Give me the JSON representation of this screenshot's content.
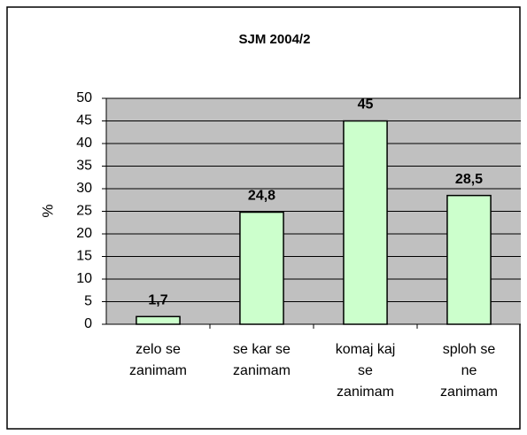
{
  "chart_data": {
    "type": "bar",
    "title": "SJM 2004/2",
    "y_label": "%",
    "categories": [
      "zelo se zanimam",
      "se kar se zanimam",
      "komaj kaj se zanimam",
      "sploh se ne zanimam"
    ],
    "values": [
      1.7,
      24.8,
      45,
      28.5
    ],
    "value_labels": [
      "1,7",
      "24,8",
      "45",
      "28,5"
    ],
    "color": "#ccffcc",
    "ylim": [
      0,
      50
    ],
    "yticks": [
      0,
      5,
      10,
      15,
      20,
      25,
      30,
      35,
      40,
      45,
      50
    ],
    "grid": true
  }
}
